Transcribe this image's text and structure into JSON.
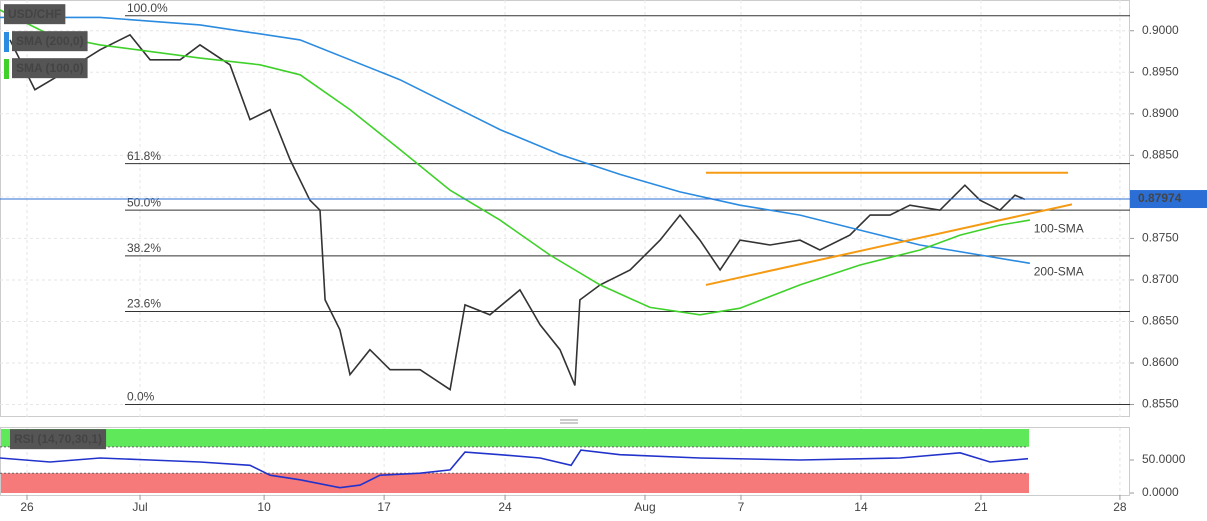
{
  "chart_data": [
    {
      "type": "line",
      "title": "USD/CHF",
      "xlim": [
        -0.875,
        46.21
      ],
      "ylim": [
        0.8535,
        0.9037
      ],
      "xticks": [
        {
          "value": 0.25,
          "label": "26"
        },
        {
          "value": 4.96,
          "label": "Jul"
        },
        {
          "value": 10.13,
          "label": "10"
        },
        {
          "value": 15.13,
          "label": "17"
        },
        {
          "value": 20.17,
          "label": "24"
        },
        {
          "value": 26.0,
          "label": "Aug"
        },
        {
          "value": 30.0,
          "label": "7"
        },
        {
          "value": 35.0,
          "label": "14"
        },
        {
          "value": 40.0,
          "label": "21"
        },
        {
          "value": 45.79,
          "label": "28"
        }
      ],
      "yticks": [
        {
          "value": 0.855,
          "label": "0.8550"
        },
        {
          "value": 0.86,
          "label": "0.8600"
        },
        {
          "value": 0.865,
          "label": "0.8650"
        },
        {
          "value": 0.87,
          "label": "0.8700"
        },
        {
          "value": 0.875,
          "label": "0.8750"
        },
        {
          "value": 0.88,
          "label": "0.8800"
        },
        {
          "value": 0.885,
          "label": "0.8850"
        },
        {
          "value": 0.89,
          "label": "0.8900"
        },
        {
          "value": 0.895,
          "label": "0.8950"
        },
        {
          "value": 0.9,
          "label": "0.9000"
        }
      ],
      "grid": true,
      "series": [
        {
          "name": "USD/CHF",
          "color": "#333333",
          "x": [
            -0.46,
            0.58,
            1.63,
            3.29,
            4.54,
            5.38,
            6.63,
            7.46,
            8.71,
            9.54,
            10.38,
            11.21,
            12.04,
            12.46,
            12.67,
            13.29,
            13.71,
            14.54,
            15.38,
            16.63,
            17.88,
            18.5,
            19.54,
            20.79,
            21.63,
            22.46,
            23.08,
            23.29,
            24.13,
            25.38,
            26.63,
            27.46,
            28.29,
            29.13,
            29.96,
            31.21,
            32.46,
            33.29,
            34.54,
            35.38,
            36.21,
            37.04,
            38.29,
            39.33,
            39.96,
            40.79,
            41.42,
            41.83
          ],
          "values": [
            0.8989,
            0.8929,
            0.8947,
            0.8977,
            0.8995,
            0.8965,
            0.8965,
            0.8983,
            0.8959,
            0.8893,
            0.8905,
            0.8845,
            0.8796,
            0.8784,
            0.8676,
            0.864,
            0.8586,
            0.8616,
            0.8592,
            0.8592,
            0.8568,
            0.867,
            0.8658,
            0.8688,
            0.8646,
            0.8616,
            0.8573,
            0.8676,
            0.8694,
            0.8712,
            0.8748,
            0.8778,
            0.8748,
            0.8712,
            0.8748,
            0.8742,
            0.8748,
            0.8736,
            0.8754,
            0.8778,
            0.8778,
            0.879,
            0.8784,
            0.8814,
            0.8796,
            0.8784,
            0.8802,
            0.8797
          ]
        },
        {
          "name": "SMA (200,0)",
          "color": "#2b8be0",
          "x": [
            -0.88,
            3.29,
            7.46,
            11.63,
            15.79,
            19.96,
            22.46,
            24.96,
            27.46,
            29.96,
            32.46,
            34.96,
            37.46,
            39.96,
            42.04
          ],
          "values": [
            0.9016,
            0.9016,
            0.9007,
            0.8989,
            0.8941,
            0.8881,
            0.8851,
            0.8827,
            0.8806,
            0.879,
            0.8778,
            0.876,
            0.8742,
            0.873,
            0.872
          ]
        },
        {
          "name": "SMA (100,0)",
          "color": "#3fd12a",
          "x": [
            -0.88,
            1.21,
            3.29,
            7.46,
            9.96,
            11.63,
            13.71,
            15.79,
            17.88,
            19.96,
            22.04,
            24.13,
            26.21,
            28.29,
            29.96,
            32.46,
            34.96,
            37.46,
            39.13,
            40.79,
            42.04
          ],
          "values": [
            0.9025,
            0.8995,
            0.8983,
            0.8967,
            0.8959,
            0.8947,
            0.8905,
            0.8857,
            0.8808,
            0.8772,
            0.873,
            0.8694,
            0.8667,
            0.8658,
            0.8666,
            0.8694,
            0.8718,
            0.8736,
            0.8754,
            0.8766,
            0.8772
          ]
        }
      ],
      "fib_levels": [
        {
          "label": "100.0%",
          "value": 0.9018
        },
        {
          "label": "61.8%",
          "value": 0.884
        },
        {
          "label": "50.0%",
          "value": 0.8784
        },
        {
          "label": "38.2%",
          "value": 0.8729
        },
        {
          "label": "23.6%",
          "value": 0.8662
        },
        {
          "label": "0.0%",
          "value": 0.855
        }
      ],
      "trendlines": [
        {
          "color": "#f59b13",
          "x": [
            28.54,
            43.63
          ],
          "values": [
            0.8829,
            0.8829
          ]
        },
        {
          "color": "#f59b13",
          "x": [
            28.54,
            43.79
          ],
          "values": [
            0.8694,
            0.8791
          ]
        }
      ],
      "last_price": {
        "value": 0.87974,
        "label": "0.87974",
        "color": "#2b6fd6"
      },
      "annotations": [
        {
          "text": "100-SMA",
          "x": 42.2,
          "y": 0.8761,
          "color": "#3fd12a"
        },
        {
          "text": "200-SMA",
          "x": 42.2,
          "y": 0.8709,
          "color": "#2b8be0"
        }
      ]
    },
    {
      "type": "line",
      "title": "RSI (14,70,30,1)",
      "xlim": [
        -0.875,
        46.21
      ],
      "ylim": [
        -3,
        98.5
      ],
      "yticks": [
        {
          "value": 0,
          "label": "0.0000"
        },
        {
          "value": 50,
          "label": "50.0000"
        }
      ],
      "overbought": 70,
      "oversold": 30,
      "overbought_color": "#5fe85a",
      "oversold_color": "#f77a7a",
      "series": [
        {
          "name": "RSI",
          "color": "#2233cc",
          "x": [
            -0.88,
            1.21,
            3.29,
            5.38,
            7.46,
            9.54,
            10.38,
            11.63,
            13.29,
            14.13,
            14.96,
            16.63,
            17.88,
            18.5,
            19.96,
            21.63,
            22.92,
            23.33,
            24.96,
            28.29,
            32.46,
            36.63,
            39.13,
            40.38,
            41.96
          ],
          "values": [
            53,
            47,
            53,
            50,
            47,
            42,
            27,
            20,
            8,
            12,
            27,
            30,
            35,
            62,
            58,
            53,
            42,
            65,
            58,
            53,
            50,
            53,
            61,
            47,
            52
          ]
        }
      ]
    }
  ]
}
